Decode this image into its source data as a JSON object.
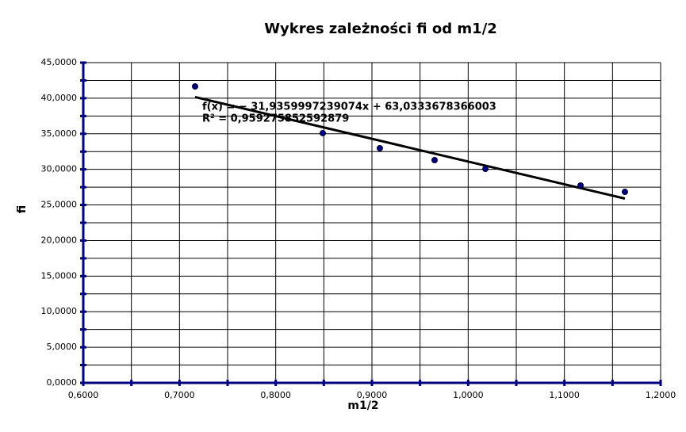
{
  "chart_data": {
    "type": "scatter",
    "title": "Wykres zależności fi od m1/2",
    "x_label": "m1/2",
    "y_label": "fi",
    "series": [
      {
        "name": "fi",
        "color": "#000080",
        "x": [
          0.7162,
          0.8489,
          0.9082,
          0.9651,
          1.0179,
          1.1168,
          1.1629
        ],
        "values": [
          41.66,
          35.09,
          32.97,
          31.3,
          30.07,
          27.74,
          26.84
        ]
      }
    ],
    "trendline": {
      "label": "f(x) = − 31,9359997239074x + 63,0333678366003",
      "r2_label": "R² = 0,959275852592879",
      "slope": -31.9359997239074,
      "intercept": 63.0333678366003,
      "color": "#000000"
    },
    "xlim": [
      0.6,
      1.2
    ],
    "xticks": [
      {
        "value": 0.6,
        "label": "0,6000"
      },
      {
        "value": 0.7,
        "label": "0,7000"
      },
      {
        "value": 0.8,
        "label": "0,8000"
      },
      {
        "value": 0.9,
        "label": "0,9000"
      },
      {
        "value": 1.0,
        "label": "1,0000"
      },
      {
        "value": 1.1,
        "label": "1,1000"
      },
      {
        "value": 1.2,
        "label": "1,2000"
      }
    ],
    "xminorticks": [
      0.65,
      0.75,
      0.85,
      0.95,
      1.05,
      1.15
    ],
    "ylim": [
      0,
      45
    ],
    "yticks": [
      {
        "value": 0,
        "label": "0,0000"
      },
      {
        "value": 5,
        "label": "5,0000"
      },
      {
        "value": 10,
        "label": "10,0000"
      },
      {
        "value": 15,
        "label": "15,0000"
      },
      {
        "value": 20,
        "label": "20,0000"
      },
      {
        "value": 25,
        "label": "25,0000"
      },
      {
        "value": 30,
        "label": "30,0000"
      },
      {
        "value": 35,
        "label": "35,0000"
      },
      {
        "value": 40,
        "label": "40,0000"
      },
      {
        "value": 45,
        "label": "45,0000"
      }
    ],
    "yminorticks": [
      2.5,
      7.5,
      12.5,
      17.5,
      22.5,
      27.5,
      32.5,
      37.5,
      42.5
    ],
    "grid": true
  }
}
